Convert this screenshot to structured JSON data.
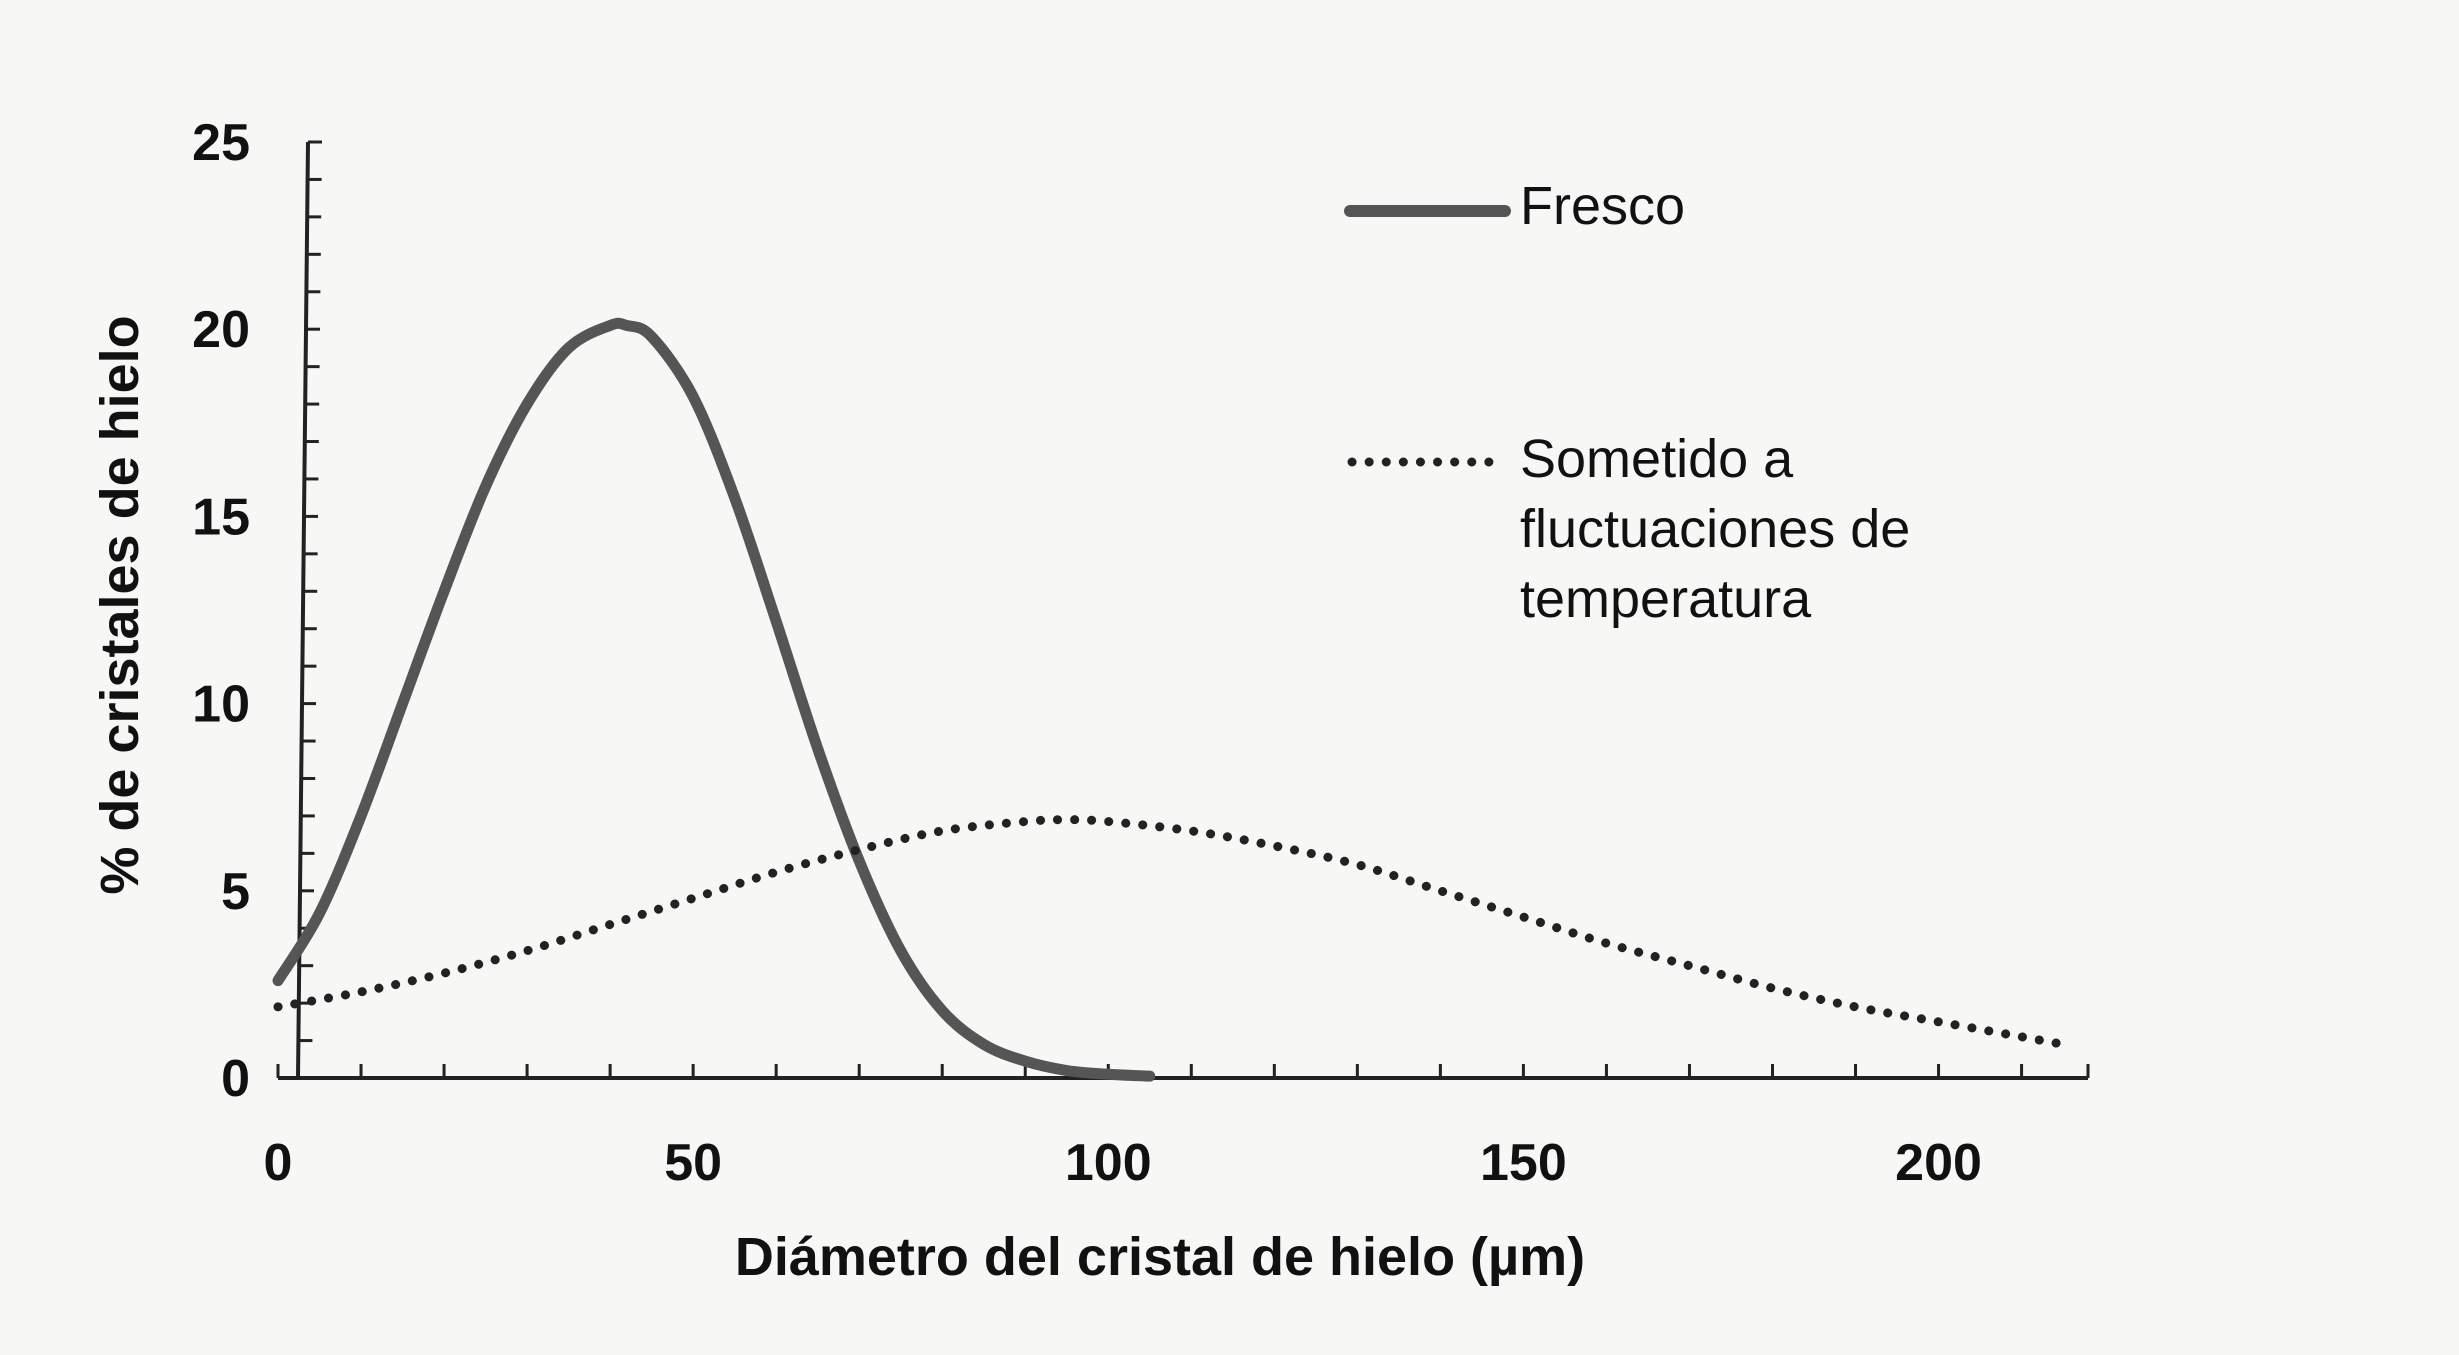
{
  "chart_data": {
    "type": "line",
    "title": "",
    "xlabel": "Diámetro del cristal de hielo (µm)",
    "ylabel": "% de cristales de hielo",
    "xlim": [
      0,
      218
    ],
    "ylim": [
      0,
      25
    ],
    "x_ticks": [
      0,
      50,
      100,
      150,
      200
    ],
    "y_ticks": [
      0,
      5,
      10,
      15,
      20,
      25
    ],
    "x_tick_labels": [
      "0",
      "50",
      "100",
      "150",
      "200"
    ],
    "y_tick_labels": [
      "0",
      "5",
      "10",
      "15",
      "20",
      "25"
    ],
    "grid": false,
    "legend_position": "top-right",
    "series": [
      {
        "name": "Fresco",
        "style": "solid",
        "color": "#555555",
        "x": [
          0,
          5,
          10,
          15,
          20,
          25,
          30,
          35,
          40,
          42,
          45,
          50,
          55,
          60,
          65,
          70,
          75,
          80,
          85,
          90,
          95,
          100,
          105
        ],
        "y": [
          2.6,
          4.4,
          7.0,
          10.0,
          13.0,
          15.8,
          18.0,
          19.5,
          20.1,
          20.1,
          19.8,
          18.2,
          15.5,
          12.2,
          8.8,
          5.8,
          3.4,
          1.8,
          0.9,
          0.45,
          0.2,
          0.1,
          0.05
        ]
      },
      {
        "name": "Sometido a fluctuaciones de temperatura",
        "style": "dotted",
        "color": "#222222",
        "x": [
          0,
          10,
          20,
          30,
          40,
          50,
          60,
          70,
          80,
          90,
          95,
          100,
          110,
          120,
          130,
          140,
          150,
          160,
          170,
          180,
          190,
          200,
          210,
          215
        ],
        "y": [
          1.9,
          2.3,
          2.8,
          3.4,
          4.1,
          4.8,
          5.5,
          6.1,
          6.6,
          6.85,
          6.9,
          6.85,
          6.6,
          6.2,
          5.7,
          5.0,
          4.3,
          3.6,
          3.0,
          2.4,
          1.9,
          1.5,
          1.1,
          0.9
        ]
      }
    ]
  },
  "legend": {
    "items": [
      {
        "lines": [
          "Fresco"
        ]
      },
      {
        "lines": [
          "Sometido a",
          "fluctuaciones de",
          "temperatura"
        ]
      }
    ]
  }
}
